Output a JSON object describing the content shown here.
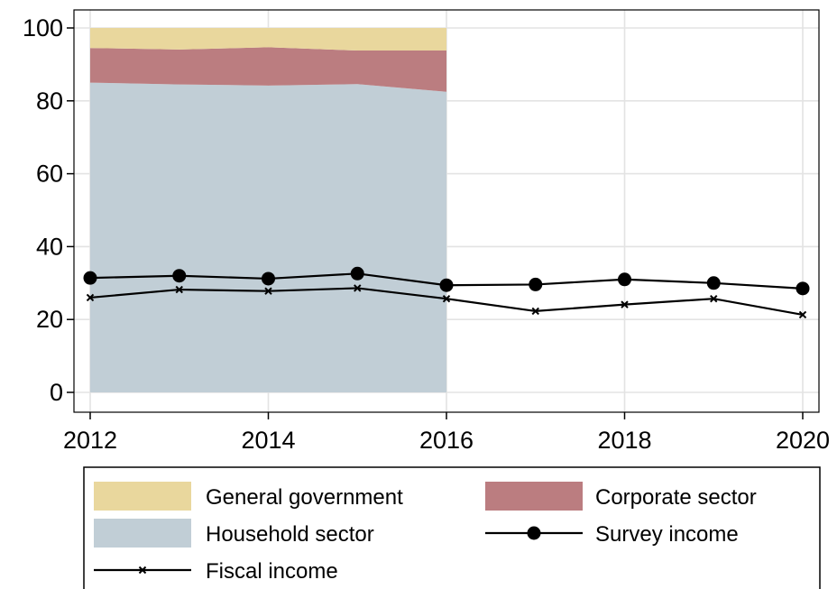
{
  "chart_data": {
    "type": "area",
    "title": "",
    "xlabel": "",
    "ylabel": "",
    "xlim": [
      2012,
      2020
    ],
    "ylim": [
      0,
      100
    ],
    "x_ticks": [
      "2012",
      "2014",
      "2016",
      "2018",
      "2020"
    ],
    "y_ticks": [
      "0",
      "20",
      "40",
      "60",
      "80",
      "100"
    ],
    "grid": true,
    "legend_position": "bottom",
    "stacked_area": {
      "x": [
        2012,
        2013,
        2014,
        2015,
        2016
      ],
      "series": [
        {
          "name": "Household sector",
          "color": "#c1ced6",
          "values": [
            85.0,
            84.5,
            84.2,
            84.6,
            82.5
          ]
        },
        {
          "name": "Corporate sector",
          "color": "#bb7d80",
          "values": [
            9.5,
            9.6,
            10.5,
            9.2,
            11.3
          ]
        },
        {
          "name": "General government",
          "color": "#e9d79d",
          "values": [
            5.5,
            5.9,
            5.3,
            6.2,
            6.2
          ]
        }
      ]
    },
    "lines": [
      {
        "name": "Survey income",
        "marker": "filled-circle",
        "color": "#000000",
        "x": [
          2012,
          2013,
          2014,
          2015,
          2016,
          2017,
          2018,
          2019,
          2020
        ],
        "values": [
          31.4,
          32.0,
          31.2,
          32.6,
          29.4,
          29.6,
          31.0,
          30.0,
          28.5
        ]
      },
      {
        "name": "Fiscal income",
        "marker": "x",
        "color": "#000000",
        "x": [
          2012,
          2013,
          2014,
          2015,
          2016,
          2017,
          2018,
          2019,
          2020
        ],
        "values": [
          26.0,
          28.2,
          27.8,
          28.6,
          25.7,
          22.3,
          24.1,
          25.7,
          21.3
        ]
      }
    ],
    "legend": [
      {
        "label": "General government",
        "kind": "area",
        "color": "#e9d79d"
      },
      {
        "label": "Corporate sector",
        "kind": "area",
        "color": "#bb7d80"
      },
      {
        "label": "Household sector",
        "kind": "area",
        "color": "#c1ced6"
      },
      {
        "label": "Survey income",
        "kind": "line-circle",
        "color": "#000000"
      },
      {
        "label": "Fiscal income",
        "kind": "line-x",
        "color": "#000000"
      }
    ]
  }
}
